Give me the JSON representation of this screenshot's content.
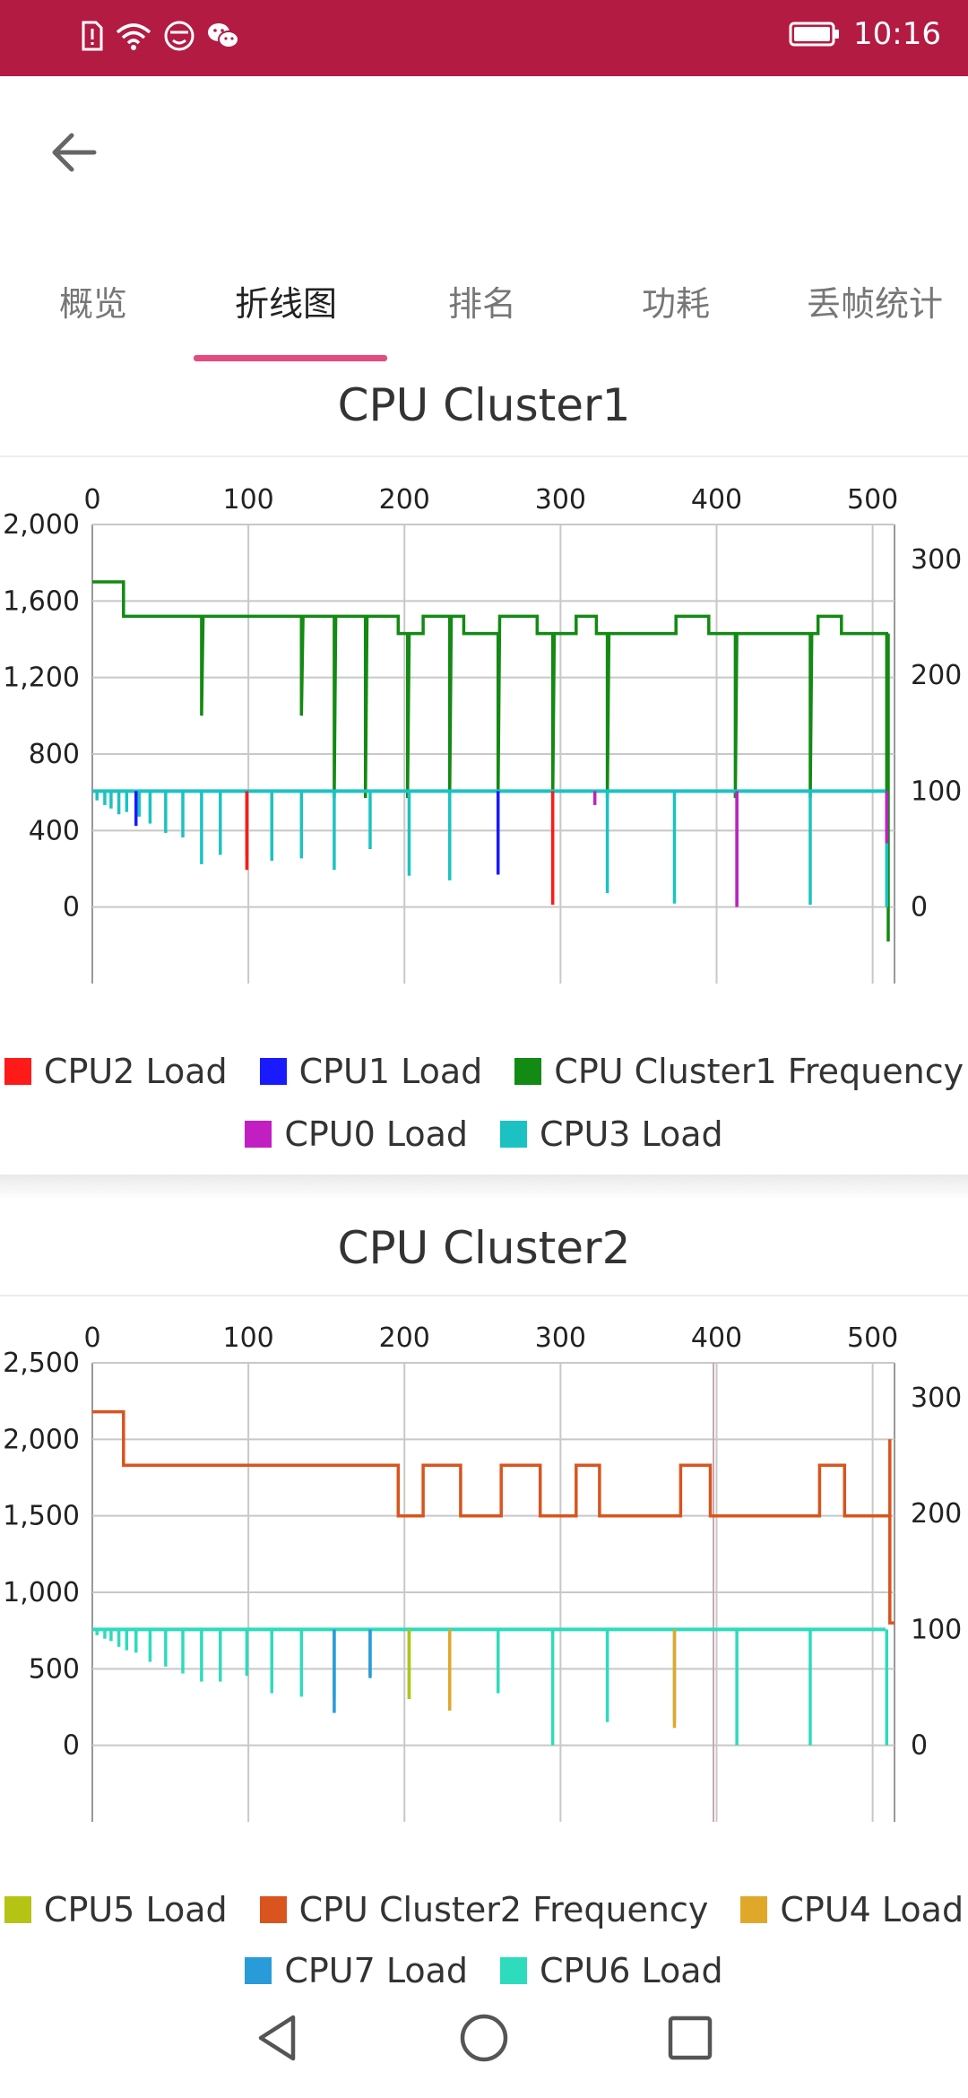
{
  "status_bar": {
    "time": "10:16",
    "icons": [
      "sim-alert-icon",
      "wifi-icon",
      "emoji-face-icon",
      "wechat-icon",
      "battery-icon"
    ],
    "background": "#b31b43"
  },
  "tabs": [
    {
      "label": "概览",
      "active": false
    },
    {
      "label": "折线图",
      "active": true
    },
    {
      "label": "排名",
      "active": false
    },
    {
      "label": "功耗",
      "active": false
    },
    {
      "label": "丢帧统计",
      "active": false
    }
  ],
  "accent_color": "#e64b7e",
  "chart_data": [
    {
      "type": "line",
      "title": "CPU Cluster1",
      "x_ticks": [
        0,
        100,
        200,
        300,
        400,
        500
      ],
      "left_axis_ticks": [
        "2,000",
        "1,600",
        "1,200",
        "800",
        "400",
        "0"
      ],
      "right_axis_ticks": [
        "300",
        "200",
        "100",
        "0"
      ],
      "left_range": [
        -400,
        2000
      ],
      "right_range": [
        -66,
        330
      ],
      "x_range": [
        0,
        514
      ],
      "legend": [
        {
          "name": "CPU2 Load",
          "color": "#ff1a1a"
        },
        {
          "name": "CPU1 Load",
          "color": "#1a1aff"
        },
        {
          "name": "CPU Cluster1 Frequency",
          "color": "#138a13"
        },
        {
          "name": "CPU0 Load",
          "color": "#c21fc2"
        },
        {
          "name": "CPU3 Load",
          "color": "#1cc2c2"
        }
      ],
      "series": [
        {
          "name": "CPU Cluster1 Frequency",
          "axis": "left",
          "color": "#138a13",
          "points": [
            [
              0,
              1700
            ],
            [
              20,
              1700
            ],
            [
              20,
              1520
            ],
            [
              70,
              1520
            ],
            [
              70,
              1000
            ],
            [
              71,
              1520
            ],
            [
              134,
              1520
            ],
            [
              134,
              1000
            ],
            [
              135,
              1520
            ],
            [
              155,
              1520
            ],
            [
              155,
              570
            ],
            [
              156,
              1520
            ],
            [
              175,
              1520
            ],
            [
              175,
              570
            ],
            [
              176,
              1520
            ],
            [
              196,
              1520
            ],
            [
              196,
              1430
            ],
            [
              202,
              1430
            ],
            [
              202,
              570
            ],
            [
              203,
              1430
            ],
            [
              212,
              1430
            ],
            [
              212,
              1520
            ],
            [
              229,
              1520
            ],
            [
              229,
              570
            ],
            [
              230,
              1520
            ],
            [
              238,
              1520
            ],
            [
              238,
              1430
            ],
            [
              260,
              1430
            ],
            [
              260,
              570
            ],
            [
              261,
              1520
            ],
            [
              285,
              1520
            ],
            [
              285,
              1430
            ],
            [
              295,
              1430
            ],
            [
              295,
              570
            ],
            [
              296,
              1430
            ],
            [
              310,
              1430
            ],
            [
              310,
              1520
            ],
            [
              323,
              1520
            ],
            [
              323,
              1430
            ],
            [
              330,
              1430
            ],
            [
              330,
              570
            ],
            [
              331,
              1430
            ],
            [
              374,
              1430
            ],
            [
              374,
              1520
            ],
            [
              395,
              1520
            ],
            [
              395,
              1430
            ],
            [
              412,
              1430
            ],
            [
              412,
              570
            ],
            [
              413,
              1430
            ],
            [
              460,
              1430
            ],
            [
              460,
              570
            ],
            [
              461,
              1430
            ],
            [
              465,
              1430
            ],
            [
              465,
              1520
            ],
            [
              480,
              1520
            ],
            [
              480,
              1430
            ],
            [
              509,
              1430
            ],
            [
              509,
              570
            ],
            [
              510,
              1430
            ],
            [
              510,
              -180
            ]
          ]
        },
        {
          "name": "CPU3 Load",
          "axis": "right",
          "color": "#1cc2c2",
          "dips": [
            [
              3,
              92
            ],
            [
              8,
              88
            ],
            [
              12,
              85
            ],
            [
              17,
              80
            ],
            [
              22,
              82
            ],
            [
              30,
              78
            ],
            [
              37,
              72
            ],
            [
              47,
              64
            ],
            [
              58,
              60
            ],
            [
              70,
              37
            ],
            [
              82,
              45
            ],
            [
              99,
              44
            ],
            [
              115,
              40
            ],
            [
              134,
              42
            ],
            [
              155,
              32
            ],
            [
              178,
              50
            ],
            [
              203,
              27
            ],
            [
              229,
              23
            ],
            [
              260,
              34
            ],
            [
              295,
              6
            ],
            [
              330,
              12
            ],
            [
              373,
              3
            ],
            [
              413,
              2
            ],
            [
              460,
              2
            ],
            [
              509,
              0
            ]
          ]
        },
        {
          "name": "CPU2 Load",
          "axis": "right",
          "color": "#ff1a1a",
          "dips": [
            [
              99,
              32
            ],
            [
              295,
              2
            ]
          ]
        },
        {
          "name": "CPU1 Load",
          "axis": "right",
          "color": "#1a1aff",
          "dips": [
            [
              28,
              70
            ],
            [
              260,
              28
            ]
          ]
        },
        {
          "name": "CPU0 Load",
          "axis": "right",
          "color": "#c21fc2",
          "dips": [
            [
              322,
              88
            ],
            [
              413,
              0
            ],
            [
              509,
              55
            ]
          ]
        }
      ]
    },
    {
      "type": "line",
      "title": "CPU Cluster2",
      "x_ticks": [
        0,
        100,
        200,
        300,
        400,
        500
      ],
      "left_axis_ticks": [
        "2,500",
        "2,000",
        "1,500",
        "1,000",
        "500",
        "0"
      ],
      "right_axis_ticks": [
        "300",
        "200",
        "100",
        "0"
      ],
      "left_range": [
        -500,
        2500
      ],
      "right_range": [
        -66,
        330
      ],
      "x_range": [
        0,
        514
      ],
      "legend": [
        {
          "name": "CPU5 Load",
          "color": "#b5c414"
        },
        {
          "name": "CPU Cluster2 Frequency",
          "color": "#d9541e"
        },
        {
          "name": "CPU4 Load",
          "color": "#e0a82a"
        },
        {
          "name": "CPU7 Load",
          "color": "#2a9bd9"
        },
        {
          "name": "CPU6 Load",
          "color": "#2edbbd"
        }
      ],
      "series": [
        {
          "name": "CPU Cluster2 Frequency",
          "axis": "left",
          "color": "#d9541e",
          "points": [
            [
              0,
              2180
            ],
            [
              20,
              2180
            ],
            [
              20,
              1830
            ],
            [
              196,
              1830
            ],
            [
              196,
              1500
            ],
            [
              212,
              1500
            ],
            [
              212,
              1830
            ],
            [
              236,
              1830
            ],
            [
              236,
              1500
            ],
            [
              262,
              1500
            ],
            [
              262,
              1830
            ],
            [
              287,
              1830
            ],
            [
              287,
              1500
            ],
            [
              310,
              1500
            ],
            [
              310,
              1830
            ],
            [
              325,
              1830
            ],
            [
              325,
              1500
            ],
            [
              377,
              1500
            ],
            [
              377,
              1830
            ],
            [
              396,
              1830
            ],
            [
              396,
              1500
            ],
            [
              466,
              1500
            ],
            [
              466,
              1830
            ],
            [
              482,
              1830
            ],
            [
              482,
              1500
            ],
            [
              511,
              1500
            ],
            [
              511,
              2000
            ],
            [
              511,
              800
            ],
            [
              514,
              800
            ]
          ]
        },
        {
          "name": "CPU6 Load",
          "axis": "right",
          "color": "#2edbbd",
          "dips": [
            [
              3,
              95
            ],
            [
              8,
              92
            ],
            [
              12,
              90
            ],
            [
              17,
              85
            ],
            [
              22,
              82
            ],
            [
              28,
              80
            ],
            [
              37,
              72
            ],
            [
              47,
              68
            ],
            [
              58,
              62
            ],
            [
              70,
              55
            ],
            [
              82,
              55
            ],
            [
              99,
              60
            ],
            [
              115,
              45
            ],
            [
              134,
              42
            ],
            [
              155,
              40
            ],
            [
              178,
              60
            ],
            [
              203,
              40
            ],
            [
              229,
              38
            ],
            [
              260,
              45
            ],
            [
              295,
              0
            ],
            [
              330,
              20
            ],
            [
              373,
              20
            ],
            [
              413,
              0
            ],
            [
              460,
              0
            ],
            [
              509,
              0
            ]
          ]
        },
        {
          "name": "CPU7 Load",
          "axis": "right",
          "color": "#2a9bd9",
          "dips": [
            [
              155,
              28
            ],
            [
              178,
              58
            ]
          ]
        },
        {
          "name": "CPU4 Load",
          "axis": "right",
          "color": "#e0a82a",
          "dips": [
            [
              229,
              30
            ],
            [
              373,
              15
            ]
          ]
        },
        {
          "name": "CPU5 Load",
          "axis": "right",
          "color": "#b5c414",
          "dips": [
            [
              203,
              40
            ]
          ]
        }
      ]
    }
  ],
  "nav_bar": {
    "icons": [
      "back-triangle-icon",
      "home-circle-icon",
      "recents-square-icon"
    ]
  }
}
